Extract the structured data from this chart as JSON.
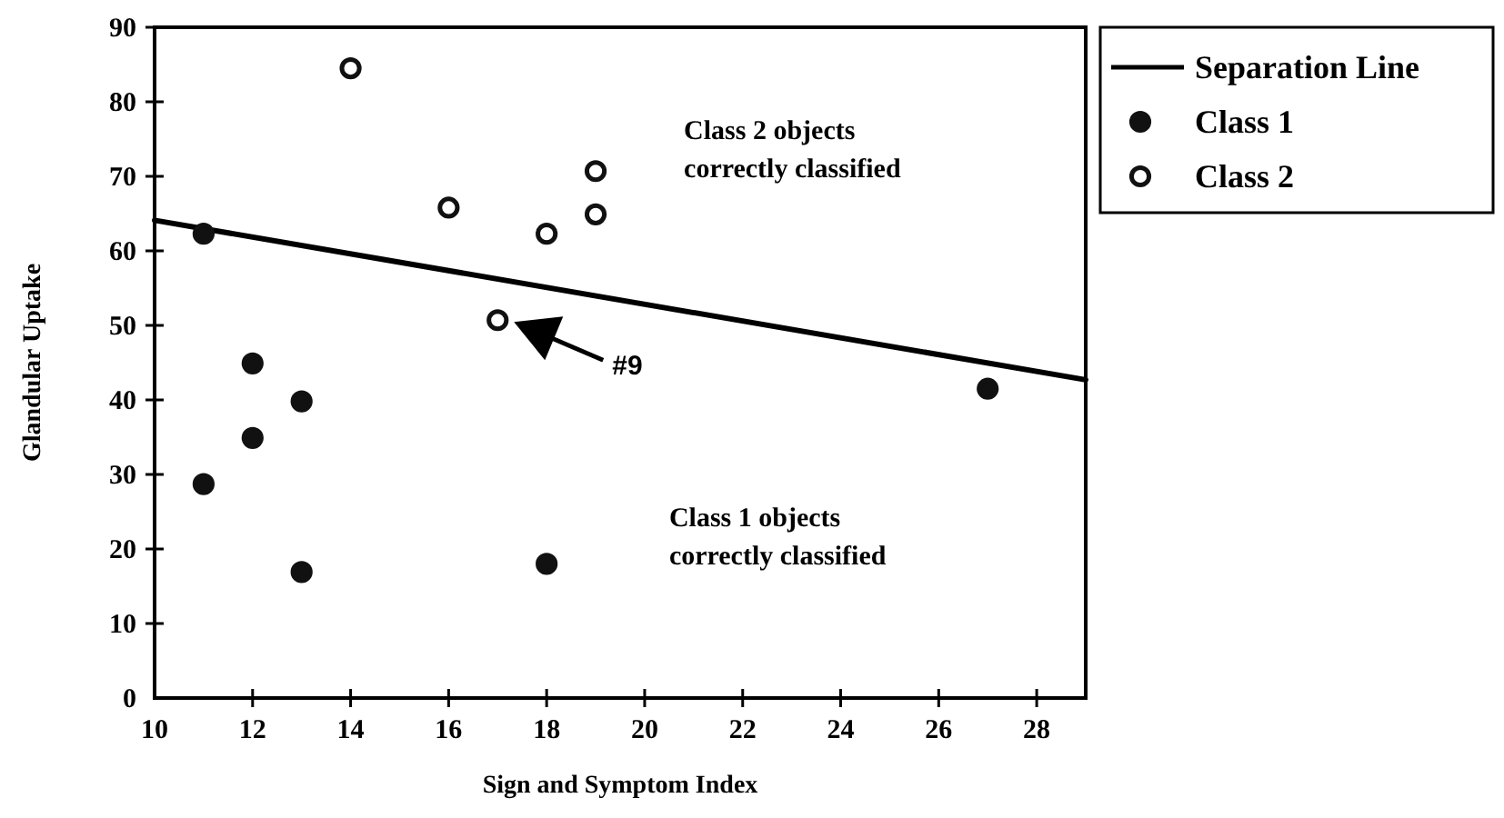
{
  "chart_data": {
    "type": "scatter",
    "xlabel": "Sign and Symptom Index",
    "ylabel": "Glandular Uptake",
    "xlim": [
      10,
      29
    ],
    "xticks": [
      10,
      12,
      14,
      16,
      18,
      20,
      22,
      24,
      26,
      28
    ],
    "ylim": [
      0,
      90
    ],
    "yticks": [
      0,
      10,
      20,
      30,
      40,
      50,
      60,
      70,
      80,
      90
    ],
    "grid": false,
    "legend": "top right",
    "series": [
      {
        "name": "Separation Line",
        "type": "line",
        "color": "#000000",
        "x": [
          10,
          29
        ],
        "values": [
          64.1,
          42.7
        ],
        "line_style": "solid",
        "marker": "none"
      },
      {
        "name": "Class 1",
        "color": "#111111",
        "marker": "circle",
        "x": [
          11,
          12,
          12,
          13,
          11,
          13,
          18,
          27
        ],
        "values": [
          62.3,
          44.9,
          34.9,
          39.8,
          28.7,
          16.9,
          18,
          41.5
        ]
      },
      {
        "name": "Class 2",
        "color": "#ffffff",
        "marker": "circle",
        "x": [
          14,
          16,
          18,
          19,
          19,
          17
        ],
        "values": [
          84.5,
          65.8,
          62.3,
          70.7,
          64.9,
          50.7
        ]
      }
    ],
    "annotations": [
      "Class 2 objects\ncorrectly classified",
      "Class 1 objects\ncorrectly classified",
      "#9"
    ]
  }
}
